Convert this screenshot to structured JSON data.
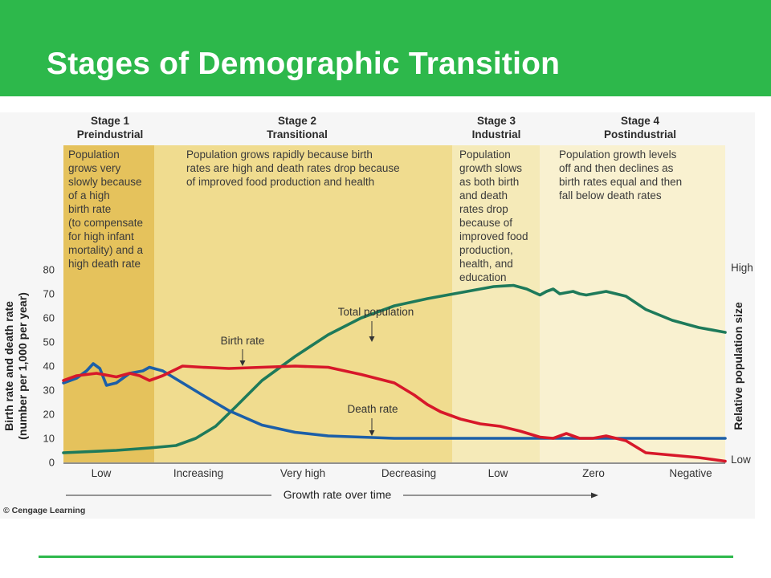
{
  "slide": {
    "title": "Stages of Demographic Transition",
    "accent_color": "#2db84b"
  },
  "chart_data": {
    "type": "line",
    "stages": [
      {
        "name": "Stage 1",
        "label": "Preindustrial",
        "description": [
          "Population",
          "grows very",
          "slowly because",
          "of a high",
          "birth rate",
          "(to compensate",
          "for high infant",
          "mortality) and a",
          "high death rate"
        ]
      },
      {
        "name": "Stage 2",
        "label": "Transitional",
        "description": [
          "Population grows rapidly because birth",
          "rates are high and death rates drop because",
          "of improved food production and health"
        ]
      },
      {
        "name": "Stage 3",
        "label": "Industrial",
        "description": [
          "Population",
          "growth slows",
          "as both birth",
          "and death",
          "rates drop",
          "because of",
          "improved food",
          "production,",
          "health, and",
          "education"
        ]
      },
      {
        "name": "Stage 4",
        "label": "Postindustrial",
        "description": [
          "Population growth levels",
          "off and then declines as",
          "birth rates equal and then",
          "fall below death rates"
        ]
      }
    ],
    "stage_colors": [
      "#e5c25c",
      "#f0dc8f",
      "#f5eab8",
      "#f9f1d0"
    ],
    "ylabel_left": [
      "Birth rate and death rate",
      "(number per 1,000 per year)"
    ],
    "ylabel_right": "Relative population size",
    "ylim": [
      0,
      80
    ],
    "yticks": [
      0,
      10,
      20,
      30,
      40,
      50,
      60,
      70,
      80
    ],
    "right_axis": {
      "high": "High",
      "low": "Low"
    },
    "xlim": [
      0,
      100
    ],
    "x_categories": [
      "Low",
      "Increasing",
      "Very high",
      "Decreasing",
      "Low",
      "Zero",
      "Negative"
    ],
    "xlabel": "Growth rate over time",
    "series": [
      {
        "name": "Birth rate",
        "color": "#d7182a",
        "x": [
          0,
          2,
          5,
          8,
          10,
          11.5,
          13,
          15,
          18,
          21,
          25,
          30,
          35,
          40,
          45,
          50,
          53,
          55,
          57,
          60,
          63,
          66,
          69,
          72,
          74,
          76,
          78,
          80,
          82,
          85,
          88,
          92,
          96,
          100
        ],
        "y": [
          34,
          36,
          37,
          35.5,
          37,
          36,
          34,
          36,
          40,
          39.5,
          39,
          39.5,
          40,
          39.5,
          36.5,
          33,
          28,
          24,
          21,
          18,
          16,
          15,
          13,
          10.5,
          10,
          12,
          10,
          10,
          11,
          9,
          4,
          3,
          2,
          0.5
        ]
      },
      {
        "name": "Death rate",
        "color": "#1c5fa8",
        "x": [
          0,
          2,
          3.5,
          4.5,
          5.5,
          6.5,
          8,
          10,
          12,
          13,
          15,
          18,
          21,
          25,
          30,
          35,
          40,
          45,
          50,
          55,
          60,
          70,
          80,
          90,
          100
        ],
        "y": [
          33,
          35,
          38,
          41,
          39,
          32,
          33,
          37,
          38,
          39.5,
          38,
          33,
          28,
          21.5,
          15.5,
          12.5,
          11,
          10.5,
          10,
          10,
          10,
          10,
          10,
          10,
          10
        ]
      },
      {
        "name": "Total population",
        "color": "#1e7a5a",
        "x": [
          0,
          8,
          13,
          17,
          20,
          23,
          26,
          30,
          35,
          40,
          45,
          50,
          55,
          60,
          65,
          68,
          70,
          72,
          73,
          74,
          75,
          76,
          77,
          78,
          79,
          80,
          82,
          85,
          88,
          92,
          96,
          100
        ],
        "y": [
          4,
          5,
          6,
          7,
          10,
          15,
          23,
          34,
          44,
          53,
          60,
          65,
          68,
          70.5,
          73,
          73.5,
          72,
          69.5,
          71,
          72,
          70,
          70.5,
          71,
          70,
          69.5,
          70,
          71,
          69,
          63.5,
          59,
          56,
          54
        ]
      }
    ],
    "annotations": [
      {
        "text": "Total population",
        "points_to": "Total population"
      },
      {
        "text": "Birth rate",
        "points_to": "Birth rate"
      },
      {
        "text": "Death rate",
        "points_to": "Death rate"
      }
    ],
    "grid": false,
    "credit": "© Cengage Learning"
  }
}
